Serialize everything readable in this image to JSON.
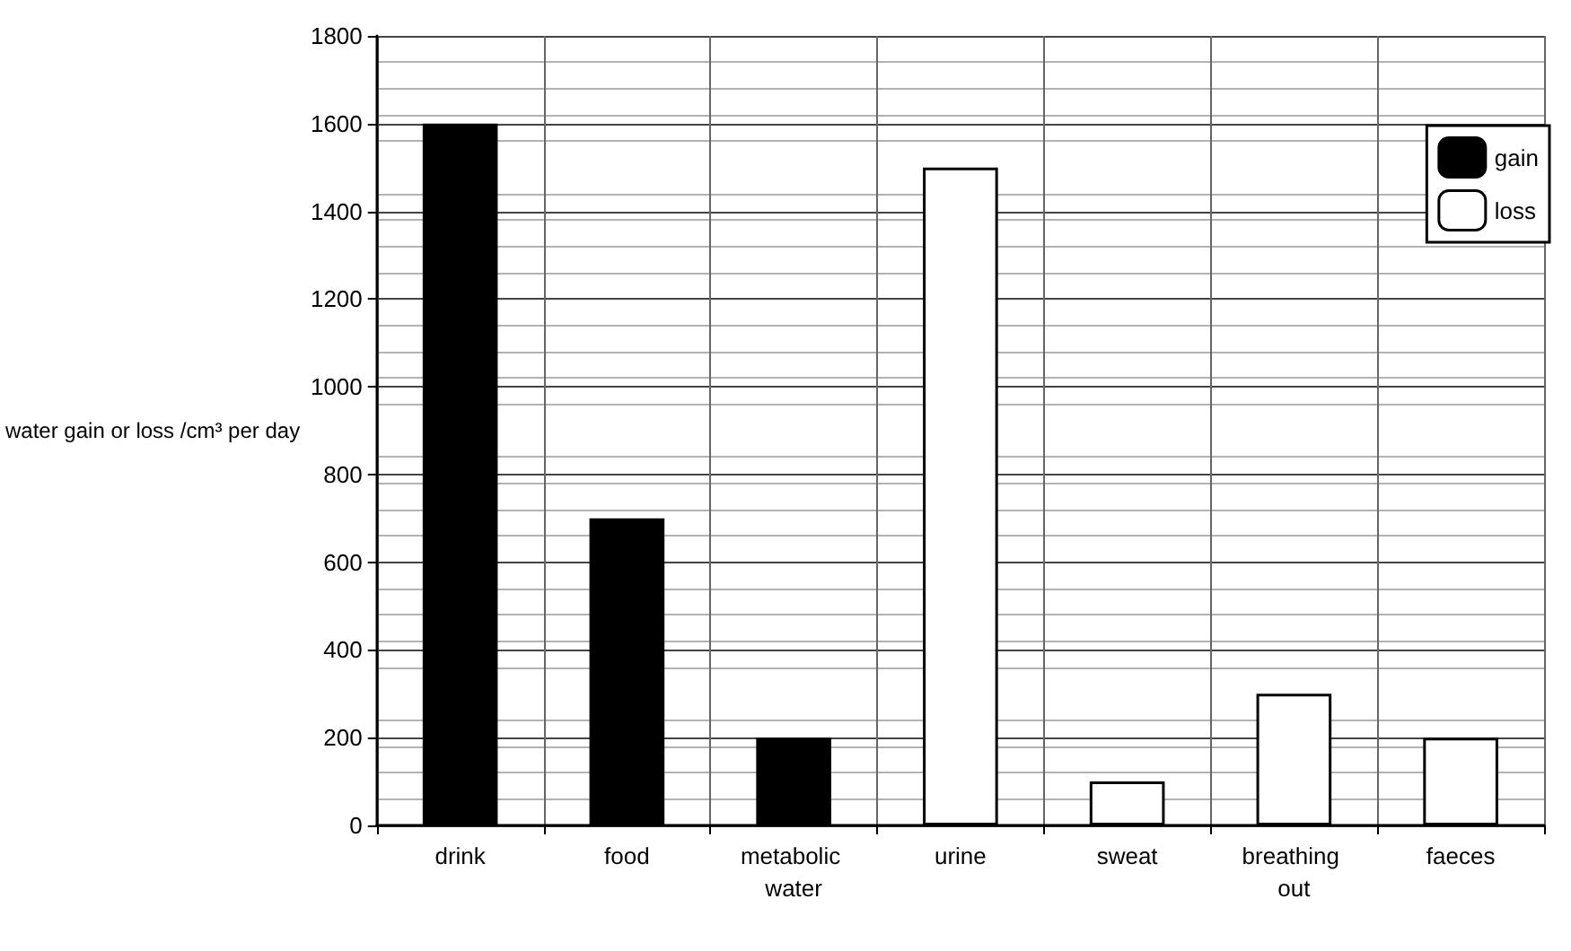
{
  "chart_data": {
    "type": "bar",
    "ylabel": "water gain or loss /cm³ per day",
    "categories": [
      "drink",
      "food",
      "metabolic water",
      "urine",
      "sweat",
      "breathing out",
      "faeces"
    ],
    "series": [
      {
        "name": "gain",
        "color": "#000000",
        "values": [
          1600,
          700,
          200,
          null,
          null,
          null,
          null
        ]
      },
      {
        "name": "loss",
        "color": "#ffffff",
        "values": [
          null,
          null,
          null,
          1500,
          100,
          300,
          200
        ]
      }
    ],
    "ylim": [
      0,
      1800
    ],
    "yticks": [
      0,
      200,
      400,
      600,
      800,
      1000,
      1200,
      1400,
      1600,
      1800
    ],
    "grid": true,
    "legend": "top right"
  }
}
